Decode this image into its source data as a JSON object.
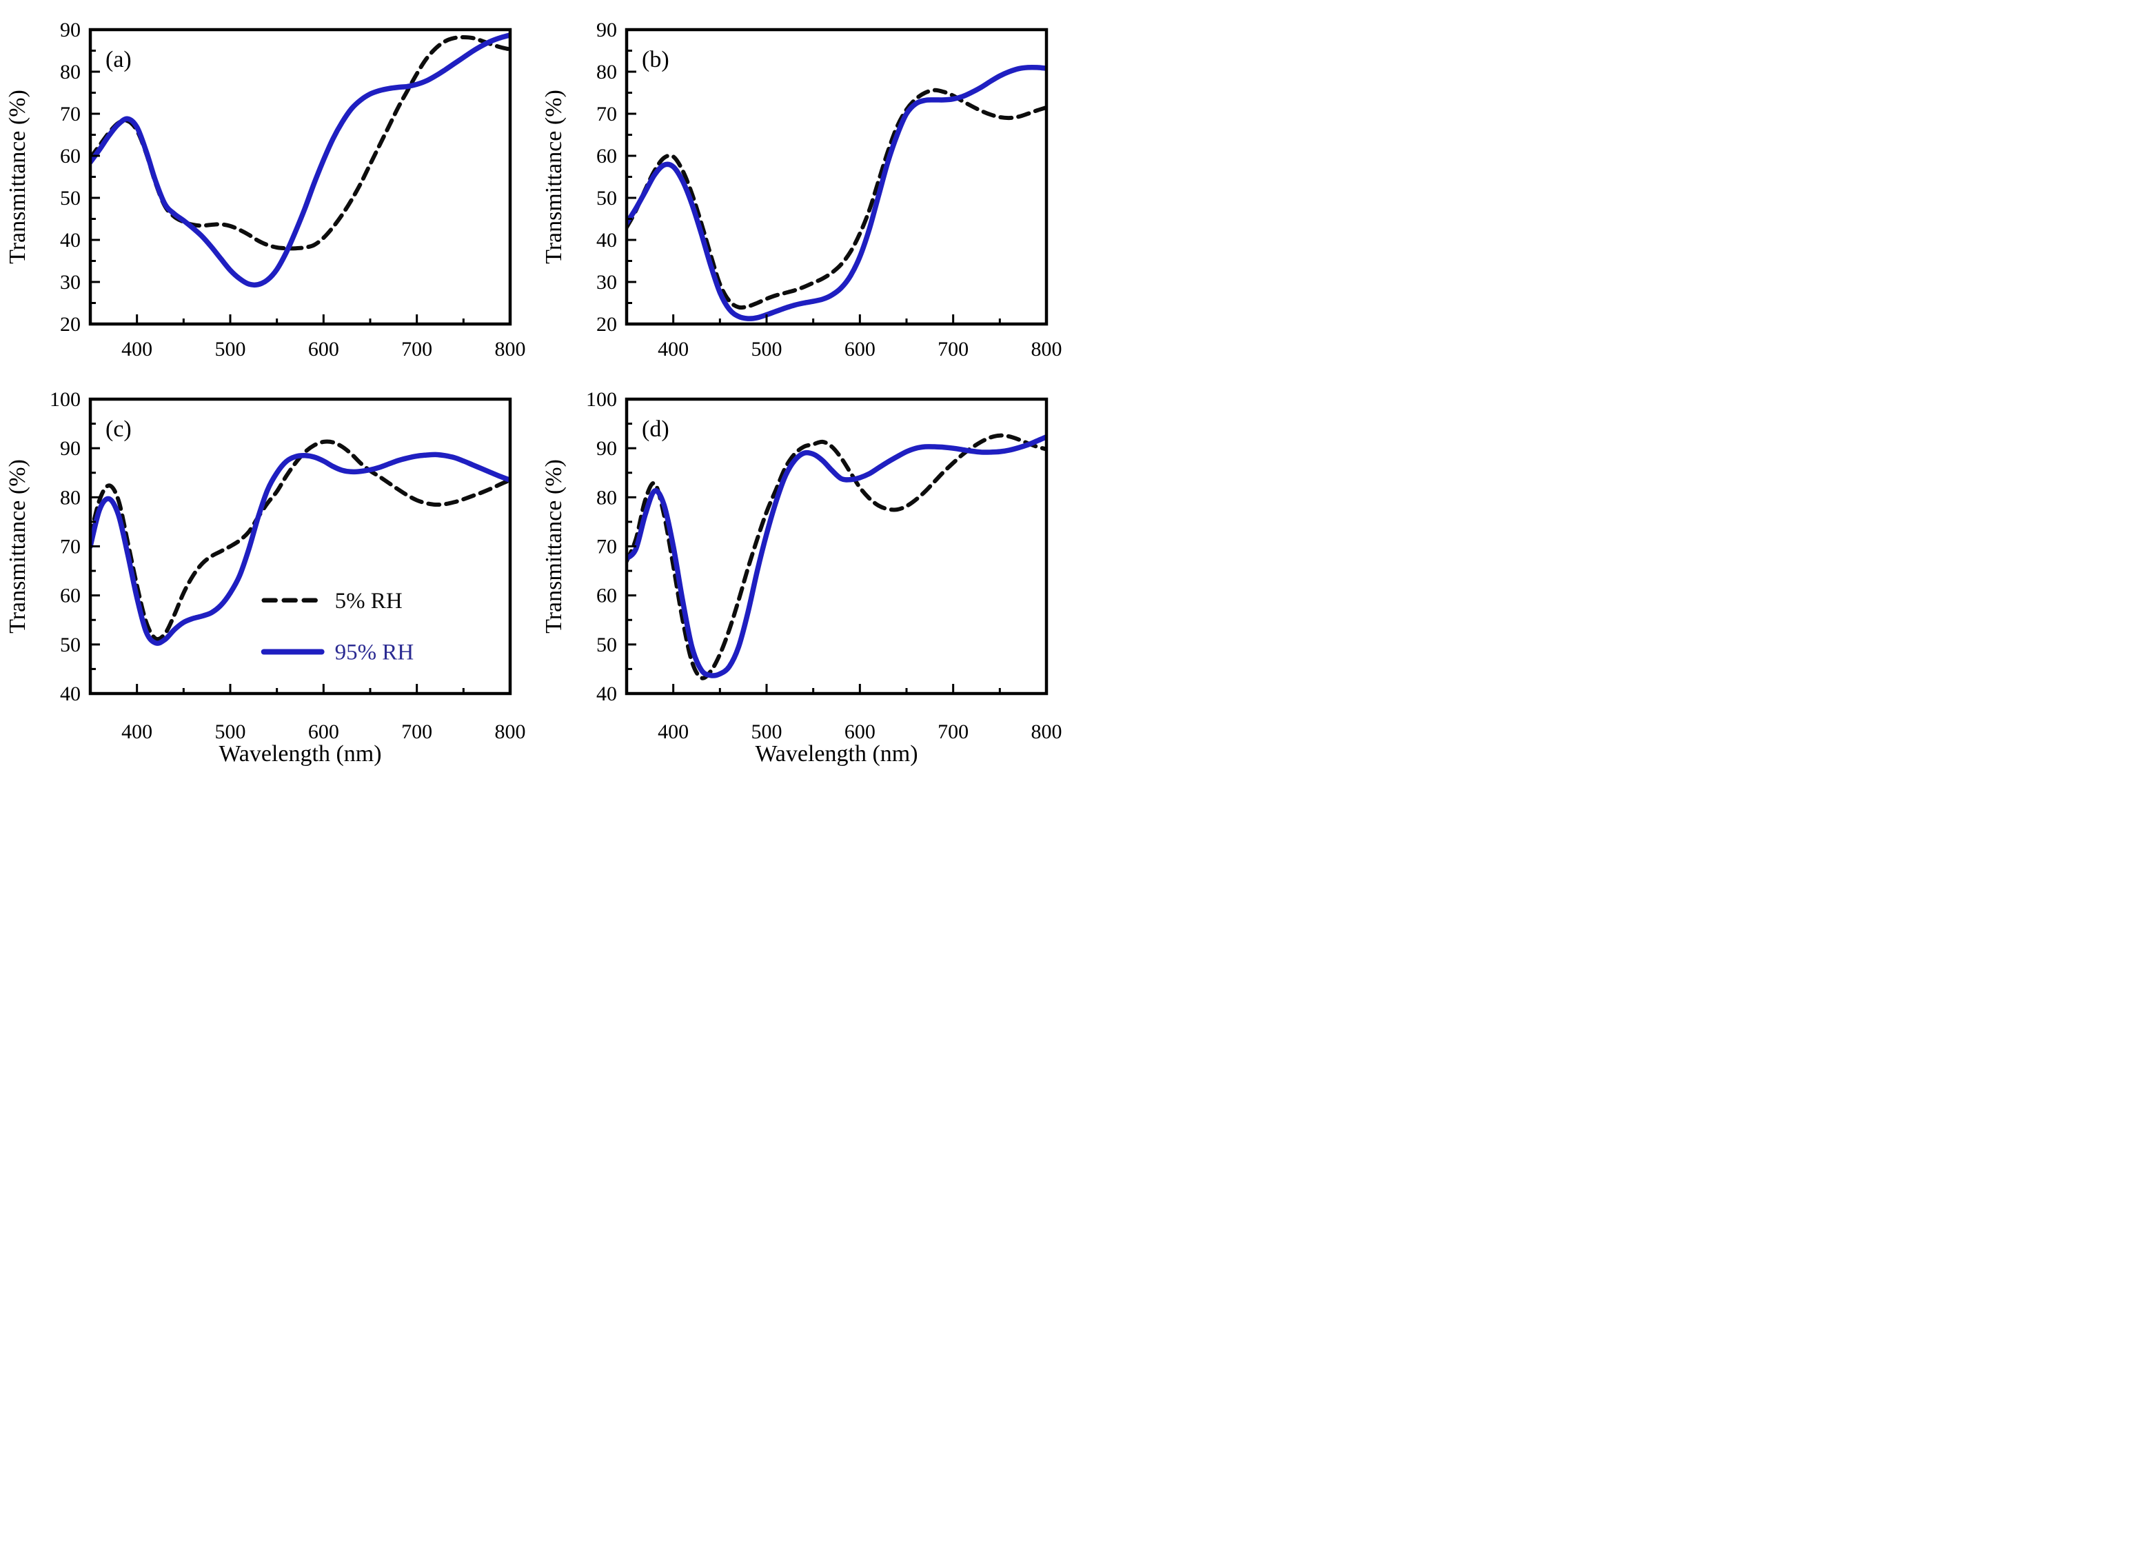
{
  "figure": {
    "background": "#ffffff",
    "colors": {
      "black_line": "#0d0d0d",
      "blue_line": "#1f1fc1",
      "blue_legend_text": "#2b2b92",
      "axis": "#000000"
    },
    "x": [
      350,
      360,
      370,
      380,
      390,
      400,
      410,
      420,
      430,
      440,
      450,
      460,
      470,
      480,
      490,
      500,
      510,
      520,
      530,
      540,
      550,
      560,
      570,
      580,
      590,
      600,
      610,
      620,
      630,
      640,
      650,
      660,
      670,
      680,
      690,
      700,
      710,
      720,
      730,
      740,
      750,
      760,
      770,
      780,
      790,
      800
    ],
    "legend": {
      "items": [
        {
          "label": "5% RH",
          "line_style": "dashed",
          "line_color": "#0d0d0d",
          "text_color": "#0d0d0d"
        },
        {
          "label": "95% RH",
          "line_style": "solid",
          "line_color": "#1f1fc1",
          "text_color": "#2b2b92"
        }
      ]
    }
  },
  "chart_data": [
    {
      "type": "line",
      "panel_label": "(a)",
      "title": "",
      "xlabel": "",
      "ylabel": "Transmittance (%)",
      "xlim": [
        350,
        800
      ],
      "ylim": [
        20,
        90
      ],
      "xticks": [
        400,
        500,
        600,
        700,
        800
      ],
      "yticks": [
        20,
        30,
        40,
        50,
        60,
        70,
        80,
        90
      ],
      "x_start": 350,
      "x_step": 10,
      "grid": false,
      "show_legend": false,
      "series": [
        {
          "name": "5% RH",
          "style": "dashed",
          "values": [
            59.5,
            62.5,
            65.5,
            67.8,
            68.3,
            66.0,
            60.5,
            53.5,
            48.0,
            45.5,
            44.3,
            43.6,
            43.4,
            43.6,
            43.7,
            43.3,
            42.4,
            41.2,
            39.8,
            38.8,
            38.2,
            38.0,
            38.0,
            38.2,
            38.8,
            40.5,
            43.0,
            46.0,
            49.5,
            53.5,
            58.0,
            62.5,
            67.0,
            71.5,
            75.5,
            79.5,
            83.0,
            85.5,
            87.2,
            88.0,
            88.2,
            88.0,
            87.3,
            86.5,
            85.8,
            85.3
          ]
        },
        {
          "name": "95% RH",
          "style": "solid",
          "values": [
            58.5,
            61.5,
            64.8,
            67.5,
            68.8,
            66.8,
            61.0,
            54.0,
            48.5,
            46.2,
            44.6,
            42.8,
            40.8,
            38.3,
            35.5,
            32.8,
            30.8,
            29.5,
            29.4,
            30.5,
            33.0,
            37.0,
            42.0,
            47.5,
            53.5,
            59.0,
            64.0,
            68.0,
            71.2,
            73.3,
            74.7,
            75.5,
            76.0,
            76.3,
            76.5,
            77.0,
            77.8,
            79.0,
            80.4,
            81.9,
            83.4,
            84.9,
            86.2,
            87.3,
            88.1,
            88.7
          ]
        }
      ]
    },
    {
      "type": "line",
      "panel_label": "(b)",
      "title": "",
      "xlabel": "",
      "ylabel": "Transmittance (%)",
      "xlim": [
        350,
        800
      ],
      "ylim": [
        20,
        90
      ],
      "xticks": [
        400,
        500,
        600,
        700,
        800
      ],
      "yticks": [
        20,
        30,
        40,
        50,
        60,
        70,
        80,
        90
      ],
      "x_start": 350,
      "x_step": 10,
      "grid": false,
      "show_legend": false,
      "series": [
        {
          "name": "5% RH",
          "style": "dashed",
          "values": [
            43.0,
            47.0,
            52.0,
            56.5,
            59.5,
            59.8,
            56.5,
            51.0,
            44.0,
            36.5,
            29.5,
            25.5,
            24.0,
            24.2,
            25.0,
            26.0,
            26.8,
            27.4,
            28.0,
            28.8,
            29.8,
            30.8,
            32.2,
            34.2,
            37.2,
            41.5,
            47.0,
            54.0,
            61.0,
            67.0,
            71.0,
            73.5,
            75.0,
            75.6,
            75.2,
            74.3,
            73.0,
            71.8,
            70.7,
            69.8,
            69.2,
            69.0,
            69.3,
            70.0,
            70.8,
            71.5
          ]
        },
        {
          "name": "95% RH",
          "style": "solid",
          "values": [
            44.0,
            47.5,
            51.5,
            55.5,
            57.8,
            57.4,
            54.0,
            48.5,
            41.5,
            34.0,
            27.5,
            23.5,
            21.8,
            21.3,
            21.5,
            22.2,
            23.0,
            23.8,
            24.5,
            25.0,
            25.4,
            25.9,
            26.9,
            28.6,
            31.5,
            36.0,
            42.5,
            50.5,
            58.5,
            65.0,
            70.0,
            72.4,
            73.2,
            73.3,
            73.3,
            73.5,
            74.1,
            75.1,
            76.3,
            77.7,
            79.0,
            80.0,
            80.7,
            81.0,
            81.0,
            80.8
          ]
        }
      ]
    },
    {
      "type": "line",
      "panel_label": "(c)",
      "title": "",
      "xlabel": "Wavelength (nm)",
      "ylabel": "Transmittance (%)",
      "xlim": [
        350,
        800
      ],
      "ylim": [
        40,
        100
      ],
      "xticks": [
        400,
        500,
        600,
        700,
        800
      ],
      "yticks": [
        40,
        50,
        60,
        70,
        80,
        90,
        100
      ],
      "x_start": 350,
      "x_step": 10,
      "grid": false,
      "show_legend": true,
      "series": [
        {
          "name": "5% RH",
          "style": "dashed",
          "values": [
            72.0,
            79.5,
            82.4,
            79.5,
            71.0,
            62.0,
            54.5,
            51.2,
            52.2,
            56.0,
            60.5,
            64.0,
            66.5,
            68.0,
            69.0,
            70.0,
            71.2,
            73.0,
            76.0,
            78.8,
            81.2,
            84.3,
            87.0,
            89.2,
            90.6,
            91.3,
            91.2,
            90.3,
            88.8,
            86.9,
            85.4,
            84.2,
            82.9,
            81.6,
            80.4,
            79.4,
            78.8,
            78.5,
            78.6,
            79.0,
            79.6,
            80.3,
            81.0,
            81.8,
            82.7,
            83.5
          ]
        },
        {
          "name": "95% RH",
          "style": "solid",
          "values": [
            70.0,
            77.5,
            79.7,
            76.5,
            68.5,
            59.5,
            52.5,
            50.3,
            51.0,
            53.0,
            54.5,
            55.3,
            55.8,
            56.5,
            58.0,
            60.5,
            64.0,
            69.5,
            76.0,
            81.5,
            85.0,
            87.3,
            88.3,
            88.5,
            88.2,
            87.4,
            86.3,
            85.5,
            85.2,
            85.3,
            85.6,
            86.1,
            86.8,
            87.5,
            88.0,
            88.4,
            88.6,
            88.7,
            88.5,
            88.1,
            87.4,
            86.6,
            85.8,
            85.0,
            84.2,
            83.5
          ]
        }
      ]
    },
    {
      "type": "line",
      "panel_label": "(d)",
      "title": "",
      "xlabel": "Wavelength (nm)",
      "ylabel": "Transmittance (%)",
      "xlim": [
        350,
        800
      ],
      "ylim": [
        40,
        100
      ],
      "xticks": [
        400,
        500,
        600,
        700,
        800
      ],
      "yticks": [
        40,
        50,
        60,
        70,
        80,
        90,
        100
      ],
      "x_start": 350,
      "x_step": 10,
      "grid": false,
      "show_legend": false,
      "series": [
        {
          "name": "5% RH",
          "style": "dashed",
          "values": [
            67.0,
            71.5,
            79.5,
            82.8,
            76.5,
            66.0,
            55.0,
            46.5,
            43.2,
            44.5,
            48.0,
            53.0,
            59.0,
            65.5,
            71.5,
            77.0,
            81.5,
            86.0,
            88.8,
            90.3,
            90.8,
            91.3,
            90.3,
            88.0,
            85.0,
            82.0,
            79.8,
            78.3,
            77.6,
            77.5,
            78.2,
            79.5,
            81.2,
            83.2,
            85.2,
            87.0,
            88.7,
            90.1,
            91.3,
            92.2,
            92.6,
            92.4,
            91.8,
            91.0,
            90.3,
            89.8
          ]
        },
        {
          "name": "95% RH",
          "style": "solid",
          "values": [
            67.5,
            69.5,
            76.5,
            81.3,
            78.5,
            70.0,
            59.0,
            49.5,
            44.8,
            43.7,
            44.0,
            45.5,
            49.5,
            56.5,
            65.0,
            72.5,
            79.0,
            84.3,
            87.5,
            89.0,
            88.8,
            87.5,
            85.5,
            83.8,
            83.6,
            84.0,
            84.8,
            86.0,
            87.2,
            88.3,
            89.3,
            90.0,
            90.3,
            90.3,
            90.2,
            90.0,
            89.7,
            89.4,
            89.2,
            89.2,
            89.3,
            89.6,
            90.1,
            90.7,
            91.5,
            92.3
          ]
        }
      ]
    }
  ]
}
